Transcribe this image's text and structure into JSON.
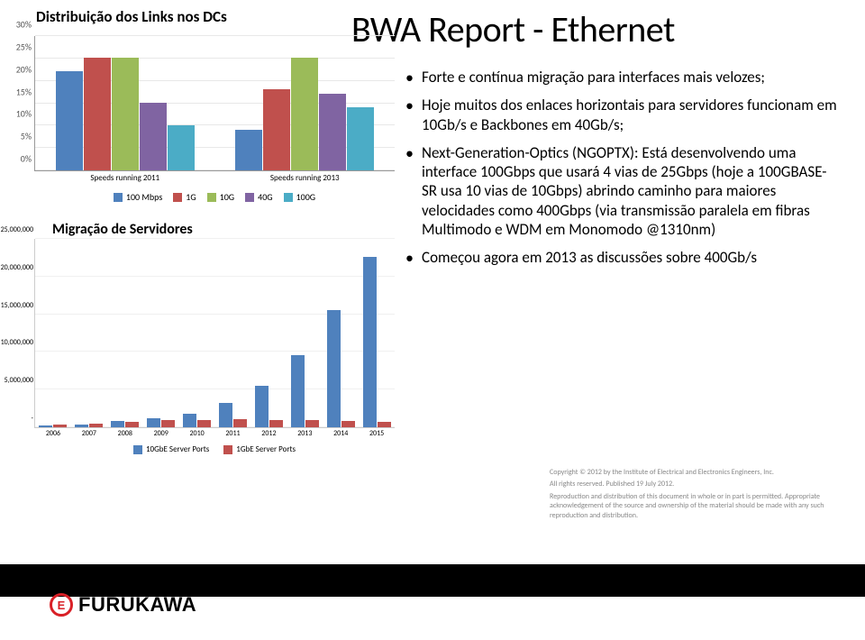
{
  "titles": {
    "dist": "Distribuição dos Links nos DCs",
    "main": "BWA Report - Ethernet",
    "mig": "Migração de Servidores"
  },
  "bullets": [
    "Forte e contínua migração para interfaces mais velozes;",
    "Hoje muitos dos enlaces horizontais para servidores funcionam em 10Gb/s e Backbones em 40Gb/s;",
    "Next-Generation-Optics (NGOPTX): Está desenvolvendo uma interface 100Gbps que usará 4 vias de 25Gbps (hoje a 100GBASE-SR usa 10 vias de 10Gbps) abrindo caminho para maiores velocidades como 400Gbps (via transmissão paralela em fibras Multimodo e WDM em Monomodo @1310nm)",
    "Começou agora em 2013 as discussões sobre 400Gb/s"
  ],
  "copyright": {
    "l1": "Copyright © 2012 by the Institute of Electrical and Electronics Engineers, Inc.",
    "l2": "All rights reserved. Published 19 July 2012.",
    "l3": "Reproduction and distribution of this document in whole or in part is permitted. Appropriate acknowledgement of the source and ownership of the material should be made with any such reproduction and distribution."
  },
  "top_chart": {
    "type": "bar",
    "ymax": 30,
    "ytick_step": 5,
    "y_suffix": "%",
    "grid_color": "#e8e8e8",
    "colors": [
      "#4f81bd",
      "#c0504d",
      "#9bbb59",
      "#8064a2",
      "#4bacc6"
    ],
    "groups": [
      {
        "label": "Speeds running 2011",
        "values": [
          22,
          25,
          25,
          15,
          10
        ]
      },
      {
        "label": "Speeds running 2013",
        "values": [
          9,
          18,
          25,
          17,
          14
        ]
      }
    ],
    "legend": [
      "100 Mbps",
      "1G",
      "10G",
      "40G",
      "100G"
    ]
  },
  "bottom_chart": {
    "type": "bar",
    "ymax": 25000000,
    "yticks": [
      0,
      5000000,
      10000000,
      15000000,
      20000000,
      25000000
    ],
    "ytick_labels": [
      "-",
      "5,000,000",
      "10,000,000",
      "15,000,000",
      "20,000,000",
      "25,000,000"
    ],
    "grid_color": "#f0f0f0",
    "colors": [
      "#4f81bd",
      "#c0504d"
    ],
    "categories": [
      "2006",
      "2007",
      "2008",
      "2009",
      "2010",
      "2011",
      "2012",
      "2013",
      "2014",
      "2015"
    ],
    "series": [
      {
        "name": "10GbE Server Ports",
        "values": [
          200000,
          400000,
          800000,
          1200000,
          1800000,
          3200000,
          5500000,
          9500000,
          15500000,
          22500000
        ]
      },
      {
        "name": "1GbE Server Ports",
        "values": [
          300000,
          500000,
          700000,
          900000,
          1000000,
          1100000,
          1000000,
          900000,
          800000,
          700000
        ]
      }
    ],
    "legend": [
      "10GbE Server Ports",
      "1GbE Server Ports"
    ]
  },
  "logo": {
    "mark": "E",
    "text": "FURUKAWA"
  }
}
